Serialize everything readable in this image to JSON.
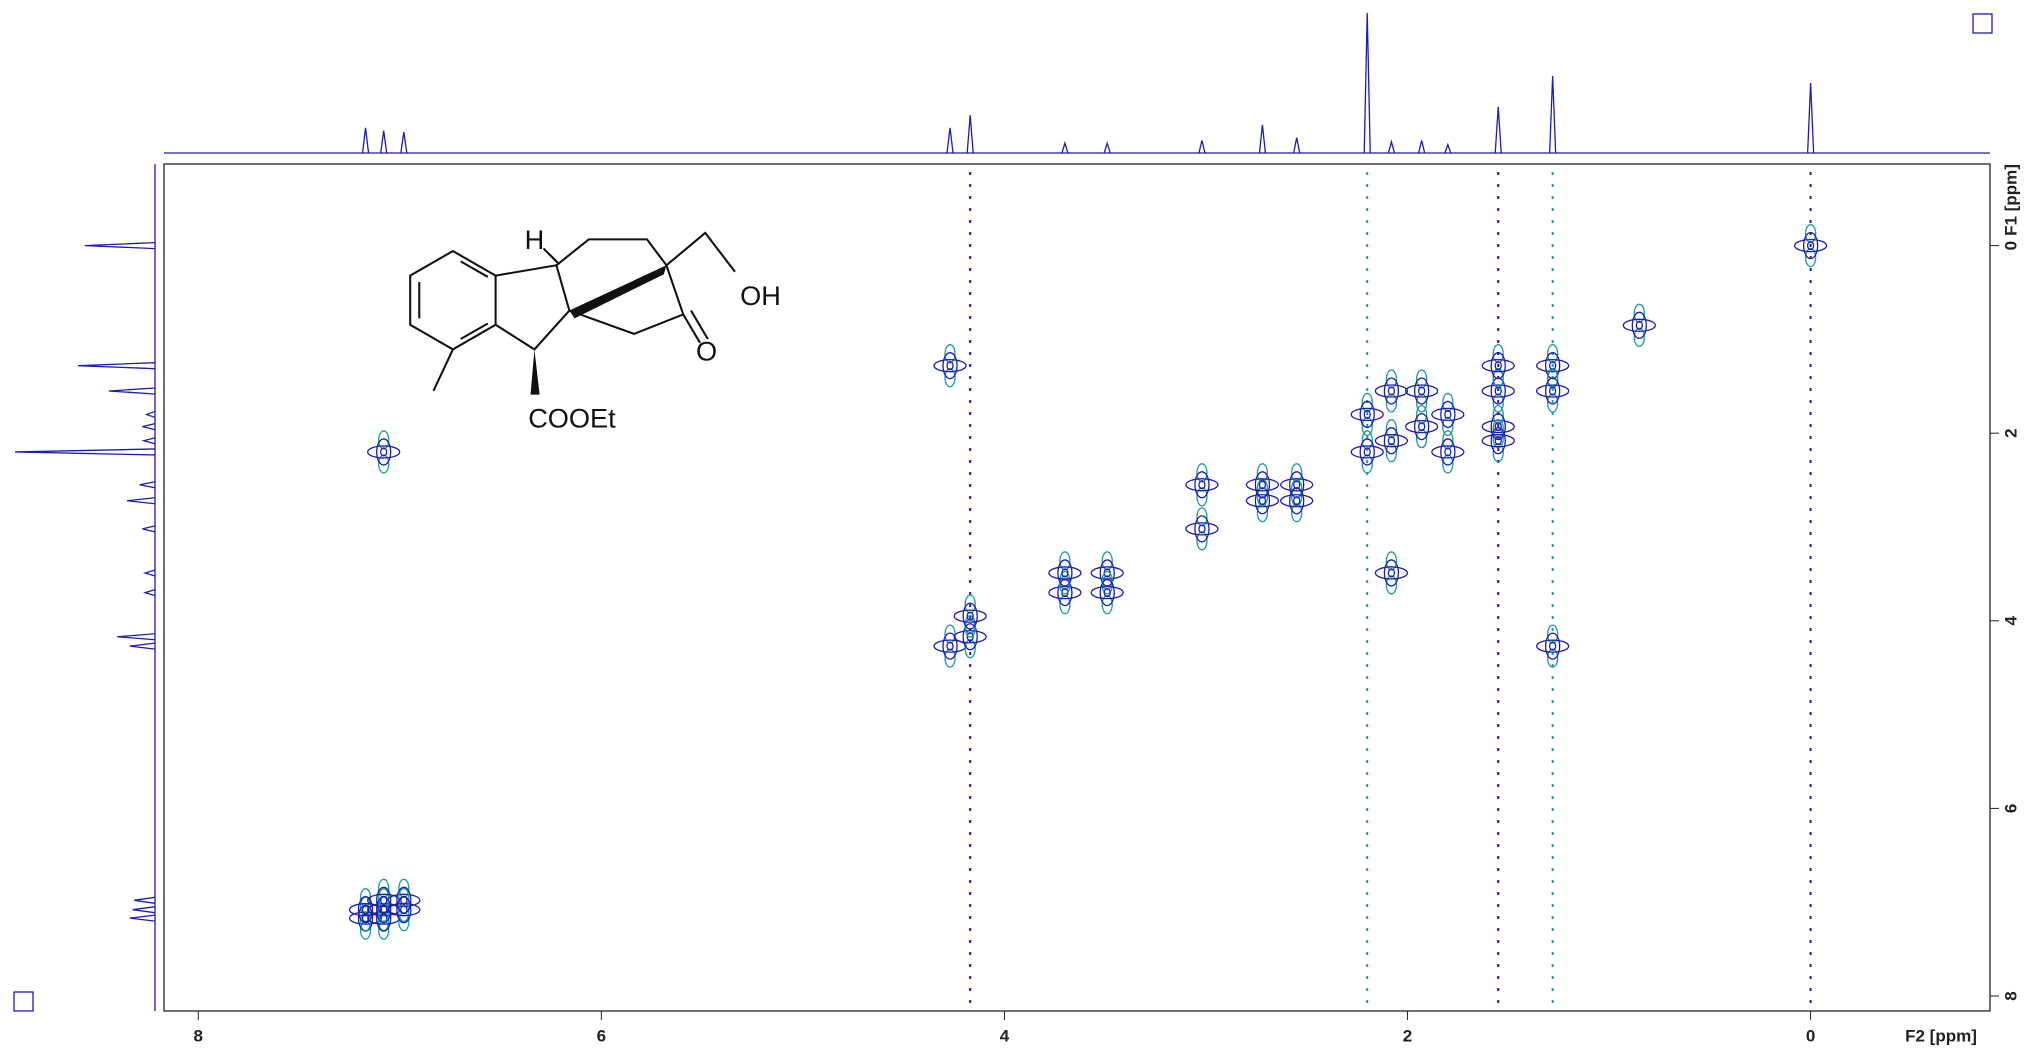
{
  "chart_data": {
    "type": "nmr2d",
    "xlabel": "F2 [ppm]",
    "ylabel": "F1 [ppm]",
    "xlim": [
      8.17,
      -0.89
    ],
    "ylim": [
      -0.87,
      8.16
    ],
    "xticks": [
      8,
      6,
      4,
      2,
      0
    ],
    "yticks": [
      0,
      2,
      4,
      6,
      8
    ],
    "color": "#1c1cb4",
    "neg_color": "#1f9b9b",
    "projection": {
      "shifts": [
        7.17,
        7.08,
        6.98,
        4.27,
        4.17,
        3.7,
        3.49,
        3.02,
        2.72,
        2.55,
        2.2,
        2.08,
        1.93,
        1.8,
        1.55,
        1.28,
        0.0
      ],
      "intensities": [
        18,
        16,
        15,
        18,
        27,
        7,
        7,
        9,
        20,
        11,
        100,
        8,
        9,
        6,
        33,
        55,
        50
      ]
    },
    "peaks": {
      "x": [
        7.17,
        7.08,
        6.98,
        4.27,
        4.17,
        3.7,
        3.49,
        3.02,
        2.72,
        2.55,
        2.2,
        2.08,
        1.93,
        1.8,
        1.55,
        1.28,
        0.0,
        7.17,
        7.08,
        7.08,
        6.98,
        4.27,
        1.28,
        3.7,
        3.49,
        2.72,
        2.55,
        3.02,
        2.2,
        1.8,
        1.55,
        2.08,
        1.93,
        1.55,
        2.08,
        7.08,
        1.55,
        1.28,
        4.17,
        0.85
      ],
      "y": [
        7.17,
        7.08,
        6.98,
        4.27,
        4.17,
        3.7,
        3.49,
        3.02,
        2.72,
        2.55,
        2.2,
        2.08,
        1.93,
        1.8,
        1.55,
        1.28,
        0.0,
        7.08,
        7.17,
        6.98,
        7.08,
        1.28,
        4.27,
        3.49,
        3.7,
        2.55,
        2.72,
        2.55,
        1.8,
        2.2,
        1.93,
        3.49,
        1.55,
        2.08,
        1.55,
        2.2,
        1.28,
        1.55,
        3.95,
        0.85
      ]
    },
    "t1_noise_x": [
      4.17,
      2.2,
      1.55,
      1.28,
      0.0
    ],
    "annotations": {
      "h": "H",
      "oh": "OH",
      "o": "O",
      "ester": "COOEt"
    }
  }
}
